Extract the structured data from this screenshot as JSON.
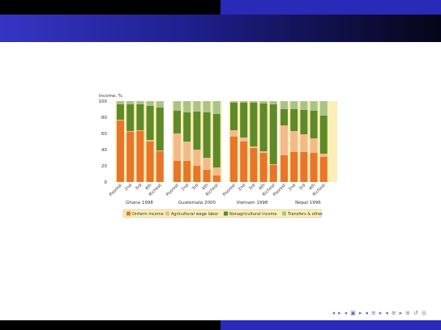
{
  "chart_data": {
    "type": "bar",
    "stacked": true,
    "ylabel": "Income, %",
    "ylim": [
      0,
      100
    ],
    "yticks": [
      0,
      20,
      40,
      60,
      80,
      100
    ],
    "categories": [
      "Poorest",
      "2nd",
      "3rd",
      "4th",
      "Richest"
    ],
    "groups": [
      {
        "name": "Ghana 1998",
        "series": [
          {
            "name": "Onfarm income",
            "values": [
              76,
              62,
              63,
              50,
              38
            ]
          },
          {
            "name": "Agricultural wage labor",
            "values": [
              1,
              1,
              1,
              2,
              1
            ]
          },
          {
            "name": "Nonagricultural income",
            "values": [
              19,
              33,
              32,
              42,
              53
            ]
          },
          {
            "name": "Transfers & other",
            "values": [
              4,
              4,
              4,
              6,
              8
            ]
          }
        ]
      },
      {
        "name": "Guatemala 2000",
        "series": [
          {
            "name": "Onfarm income",
            "values": [
              26,
              26,
              20,
              15,
              8
            ]
          },
          {
            "name": "Agricultural wage labor",
            "values": [
              34,
              24,
              20,
              15,
              10
            ]
          },
          {
            "name": "Nonagricultural income",
            "values": [
              28,
              36,
              47,
              56,
              66
            ]
          },
          {
            "name": "Transfers & other",
            "values": [
              12,
              14,
              13,
              14,
              16
            ]
          }
        ]
      },
      {
        "name": "Vietnam 1998",
        "series": [
          {
            "name": "Onfarm income",
            "values": [
              56,
              50,
              42,
              36,
              21
            ]
          },
          {
            "name": "Agricultural wage labor",
            "values": [
              8,
              5,
              2,
              2,
              1
            ]
          },
          {
            "name": "Nonagricultural income",
            "values": [
              34,
              43,
              54,
              59,
              74
            ]
          },
          {
            "name": "Transfers & other",
            "values": [
              2,
              2,
              2,
              3,
              4
            ]
          }
        ]
      },
      {
        "name": "Nepal 1996",
        "series": [
          {
            "name": "Onfarm income",
            "values": [
              33,
              37,
              37,
              36,
              31
            ]
          },
          {
            "name": "Agricultural wage labor",
            "values": [
              37,
              26,
              22,
              18,
              4
            ]
          },
          {
            "name": "Nonagricultural income",
            "values": [
              20,
              27,
              30,
              34,
              47
            ]
          },
          {
            "name": "Transfers & other",
            "values": [
              10,
              10,
              11,
              12,
              18
            ]
          }
        ]
      }
    ],
    "colors": [
      "#e8752a",
      "#f2b98c",
      "#5e8a2a",
      "#a8c48a"
    ],
    "legend_position": "bottom"
  },
  "navigation_symbols": [
    "◂",
    "▸",
    "◂",
    "▣",
    "▸",
    "◂",
    "≡",
    "▸",
    "◂",
    "≡",
    "▸",
    "≡",
    "↺",
    "◎"
  ]
}
